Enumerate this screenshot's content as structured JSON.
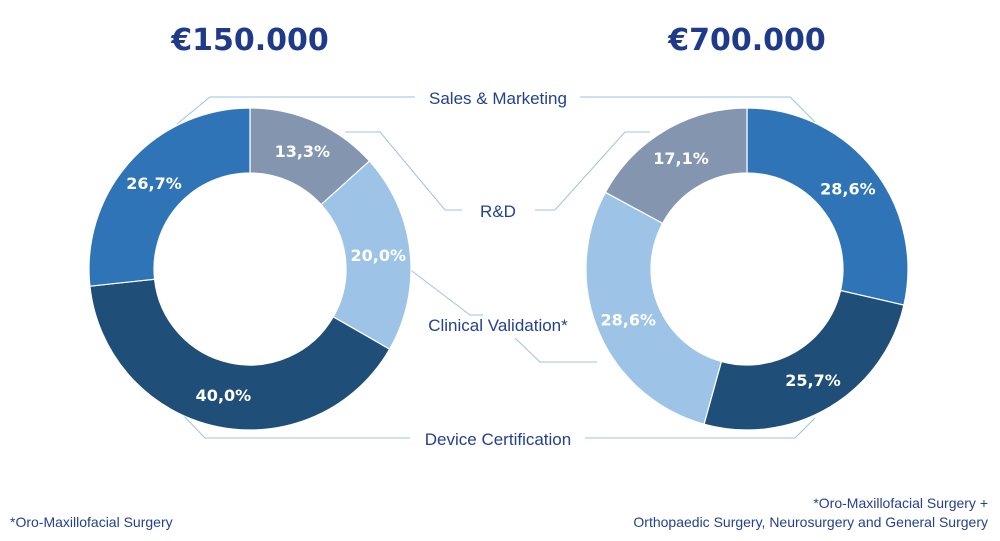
{
  "colors": {
    "Sales & Marketing": "#2e74b6",
    "R&D": "#8495b0",
    "Clinical Validation*": "#9dc3e6",
    "Device Certification": "#1f4e79",
    "title": "#1f3a8a",
    "label": "#24418f",
    "connector": "#9dc3e6"
  },
  "chart_data": [
    {
      "type": "pie",
      "variant": "donut",
      "title": "€150.000",
      "categories": [
        "Sales & Marketing",
        "R&D",
        "Clinical Validation*",
        "Device Certification"
      ],
      "values": [
        26.7,
        13.3,
        20.0,
        40.0
      ],
      "labels": [
        "26,7%",
        "13,3%",
        "20,0%",
        "40,0%"
      ],
      "slice_order_clockwise_from_top": [
        "R&D",
        "Clinical Validation*",
        "Device Certification",
        "Sales & Marketing"
      ]
    },
    {
      "type": "pie",
      "variant": "donut",
      "title": "€700.000",
      "categories": [
        "Sales & Marketing",
        "R&D",
        "Clinical Validation*",
        "Device Certification"
      ],
      "values": [
        28.6,
        17.1,
        28.6,
        25.7
      ],
      "labels": [
        "28,6%",
        "17,1%",
        "28,6%",
        "25,7%"
      ],
      "slice_order_clockwise_from_top": [
        "Sales & Marketing",
        "Device Certification",
        "Clinical Validation*",
        "R&D"
      ]
    }
  ],
  "legend_labels": [
    "Sales & Marketing",
    "R&D",
    "Clinical Validation*",
    "Device Certification"
  ],
  "footnotes": {
    "left": "*Oro-Maxillofacial Surgery",
    "right_line1": "*Oro-Maxillofacial Surgery +",
    "right_line2": "Orthopaedic Surgery, Neurosurgery and General Surgery"
  }
}
